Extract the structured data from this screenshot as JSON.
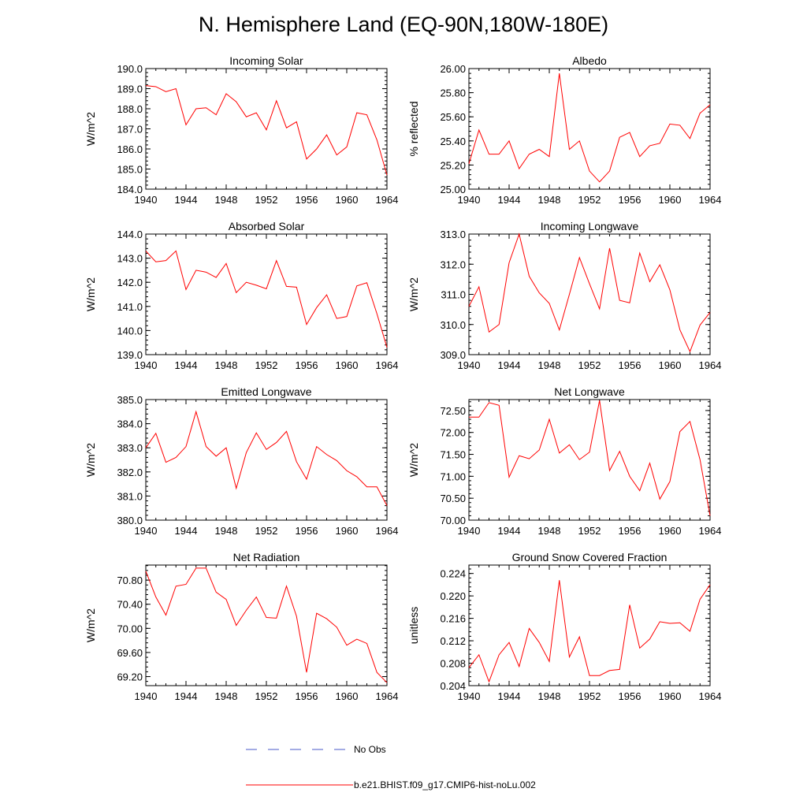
{
  "figure": {
    "title": "N. Hemisphere Land (EQ-90N,180W-180E)"
  },
  "legend": {
    "items": [
      {
        "label": "No Obs",
        "color": "#4a58c8",
        "style": "dashed"
      },
      {
        "label": "b.e21.BHIST.f09_g17.CMIP6-hist-noLu.002",
        "color": "#ff0000",
        "style": "solid"
      }
    ]
  },
  "chart_data": [
    {
      "type": "line",
      "title": "Incoming Solar",
      "xlabel": "",
      "ylabel": "W/m^2",
      "xlim": [
        1940,
        1964
      ],
      "ylim": [
        184.0,
        190.0
      ],
      "xticks": [
        "1940",
        "1944",
        "1948",
        "1952",
        "1956",
        "1960",
        "1964"
      ],
      "yticks": [
        "184.0",
        "185.0",
        "186.0",
        "187.0",
        "188.0",
        "189.0",
        "190.0"
      ],
      "x": [
        1940,
        1941,
        1942,
        1943,
        1944,
        1945,
        1946,
        1947,
        1948,
        1949,
        1950,
        1951,
        1952,
        1953,
        1954,
        1955,
        1956,
        1957,
        1958,
        1959,
        1960,
        1961,
        1962,
        1963,
        1964
      ],
      "series": [
        {
          "name": "b.e21.BHIST.f09_g17.CMIP6-hist-noLu.002",
          "color": "#ff0000",
          "values": [
            189.15,
            189.1,
            188.85,
            189.0,
            187.2,
            188.0,
            188.05,
            187.7,
            188.75,
            188.35,
            187.6,
            187.8,
            186.95,
            188.4,
            187.05,
            187.35,
            185.5,
            186.0,
            186.7,
            185.7,
            186.1,
            187.8,
            187.7,
            186.45,
            184.7
          ]
        }
      ]
    },
    {
      "type": "line",
      "title": "Albedo",
      "xlabel": "",
      "ylabel": "% reflected",
      "xlim": [
        1940,
        1964
      ],
      "ylim": [
        25.0,
        26.0
      ],
      "xticks": [
        "1940",
        "1944",
        "1948",
        "1952",
        "1956",
        "1960",
        "1964"
      ],
      "yticks": [
        "25.00",
        "25.20",
        "25.40",
        "25.60",
        "25.80",
        "26.00"
      ],
      "x": [
        1940,
        1941,
        1942,
        1943,
        1944,
        1945,
        1946,
        1947,
        1948,
        1949,
        1950,
        1951,
        1952,
        1953,
        1954,
        1955,
        1956,
        1957,
        1958,
        1959,
        1960,
        1961,
        1962,
        1963,
        1964
      ],
      "series": [
        {
          "name": "b.e21.BHIST.f09_g17.CMIP6-hist-noLu.002",
          "color": "#ff0000",
          "values": [
            25.21,
            25.49,
            25.29,
            25.29,
            25.4,
            25.17,
            25.29,
            25.33,
            25.27,
            25.96,
            25.33,
            25.4,
            25.15,
            25.06,
            25.15,
            25.43,
            25.47,
            25.27,
            25.36,
            25.38,
            25.54,
            25.53,
            25.42,
            25.63,
            25.7
          ]
        }
      ]
    },
    {
      "type": "line",
      "title": "Absorbed Solar",
      "xlabel": "",
      "ylabel": "W/m^2",
      "xlim": [
        1940,
        1964
      ],
      "ylim": [
        139.0,
        144.0
      ],
      "xticks": [
        "1940",
        "1944",
        "1948",
        "1952",
        "1956",
        "1960",
        "1964"
      ],
      "yticks": [
        "139.0",
        "140.0",
        "141.0",
        "142.0",
        "143.0",
        "144.0"
      ],
      "x": [
        1940,
        1941,
        1942,
        1943,
        1944,
        1945,
        1946,
        1947,
        1948,
        1949,
        1950,
        1951,
        1952,
        1953,
        1954,
        1955,
        1956,
        1957,
        1958,
        1959,
        1960,
        1961,
        1962,
        1963,
        1964
      ],
      "series": [
        {
          "name": "b.e21.BHIST.f09_g17.CMIP6-hist-noLu.002",
          "color": "#ff0000",
          "values": [
            143.3,
            142.85,
            142.9,
            143.3,
            141.7,
            142.5,
            142.42,
            142.2,
            142.78,
            141.57,
            142.0,
            141.88,
            141.73,
            142.9,
            141.83,
            141.8,
            140.25,
            140.95,
            141.48,
            140.5,
            140.58,
            141.85,
            141.98,
            140.7,
            139.3
          ]
        }
      ]
    },
    {
      "type": "line",
      "title": "Incoming Longwave",
      "xlabel": "",
      "ylabel": "W/m^2",
      "xlim": [
        1940,
        1964
      ],
      "ylim": [
        309.0,
        313.0
      ],
      "xticks": [
        "1940",
        "1944",
        "1948",
        "1952",
        "1956",
        "1960",
        "1964"
      ],
      "yticks": [
        "309.0",
        "310.0",
        "311.0",
        "312.0",
        "313.0"
      ],
      "x": [
        1940,
        1941,
        1942,
        1943,
        1944,
        1945,
        1946,
        1947,
        1948,
        1949,
        1950,
        1951,
        1952,
        1953,
        1954,
        1955,
        1956,
        1957,
        1958,
        1959,
        1960,
        1961,
        1962,
        1963,
        1964
      ],
      "series": [
        {
          "name": "b.e21.BHIST.f09_g17.CMIP6-hist-noLu.002",
          "color": "#ff0000",
          "values": [
            310.6,
            311.25,
            309.75,
            310.0,
            312.05,
            313.0,
            311.6,
            311.05,
            310.7,
            309.82,
            311.0,
            312.22,
            311.35,
            310.52,
            312.53,
            310.8,
            310.72,
            312.37,
            311.42,
            311.98,
            311.15,
            309.82,
            309.1,
            309.98,
            310.4
          ]
        }
      ]
    },
    {
      "type": "line",
      "title": "Emitted Longwave",
      "xlabel": "",
      "ylabel": "W/m^2",
      "xlim": [
        1940,
        1964
      ],
      "ylim": [
        380.0,
        385.0
      ],
      "xticks": [
        "1940",
        "1944",
        "1948",
        "1952",
        "1956",
        "1960",
        "1964"
      ],
      "yticks": [
        "380.0",
        "381.0",
        "382.0",
        "383.0",
        "384.0",
        "385.0"
      ],
      "x": [
        1940,
        1941,
        1942,
        1943,
        1944,
        1945,
        1946,
        1947,
        1948,
        1949,
        1950,
        1951,
        1952,
        1953,
        1954,
        1955,
        1956,
        1957,
        1958,
        1959,
        1960,
        1961,
        1962,
        1963,
        1964
      ],
      "series": [
        {
          "name": "b.e21.BHIST.f09_g17.CMIP6-hist-noLu.002",
          "color": "#ff0000",
          "values": [
            383.0,
            383.6,
            382.4,
            382.6,
            383.05,
            384.5,
            383.05,
            382.65,
            383.0,
            381.32,
            382.8,
            383.62,
            382.93,
            383.22,
            383.68,
            382.42,
            381.7,
            383.05,
            382.72,
            382.47,
            382.05,
            381.8,
            381.38,
            381.38,
            380.6
          ]
        }
      ]
    },
    {
      "type": "line",
      "title": "Net Longwave",
      "xlabel": "",
      "ylabel": "W/m^2",
      "xlim": [
        1940,
        1964
      ],
      "ylim": [
        70.0,
        72.75
      ],
      "xticks": [
        "1940",
        "1944",
        "1948",
        "1952",
        "1956",
        "1960",
        "1964"
      ],
      "yticks": [
        "70.00",
        "70.50",
        "71.00",
        "71.50",
        "72.00",
        "72.50"
      ],
      "x": [
        1940,
        1941,
        1942,
        1943,
        1944,
        1945,
        1946,
        1947,
        1948,
        1949,
        1950,
        1951,
        1952,
        1953,
        1954,
        1955,
        1956,
        1957,
        1958,
        1959,
        1960,
        1961,
        1962,
        1963,
        1964
      ],
      "series": [
        {
          "name": "b.e21.BHIST.f09_g17.CMIP6-hist-noLu.002",
          "color": "#ff0000",
          "values": [
            72.35,
            72.35,
            72.68,
            72.62,
            70.98,
            71.47,
            71.4,
            71.6,
            72.3,
            71.53,
            71.72,
            71.38,
            71.55,
            72.73,
            71.13,
            71.57,
            71.0,
            70.67,
            71.3,
            70.48,
            70.88,
            72.02,
            72.25,
            71.38,
            70.1
          ]
        }
      ]
    },
    {
      "type": "line",
      "title": "Net Radiation",
      "xlabel": "",
      "ylabel": "W/m^2",
      "xlim": [
        1940,
        1964
      ],
      "ylim": [
        69.05,
        71.05
      ],
      "xticks": [
        "1940",
        "1944",
        "1948",
        "1952",
        "1956",
        "1960",
        "1964"
      ],
      "yticks": [
        "69.20",
        "69.60",
        "70.00",
        "70.40",
        "70.80"
      ],
      "x": [
        1940,
        1941,
        1942,
        1943,
        1944,
        1945,
        1946,
        1947,
        1948,
        1949,
        1950,
        1951,
        1952,
        1953,
        1954,
        1955,
        1956,
        1957,
        1958,
        1959,
        1960,
        1961,
        1962,
        1963,
        1964
      ],
      "series": [
        {
          "name": "b.e21.BHIST.f09_g17.CMIP6-hist-noLu.002",
          "color": "#ff0000",
          "values": [
            70.95,
            70.52,
            70.22,
            70.7,
            70.73,
            71.0,
            71.0,
            70.6,
            70.48,
            70.05,
            70.3,
            70.52,
            70.18,
            70.17,
            70.7,
            70.2,
            69.27,
            70.25,
            70.16,
            70.02,
            69.72,
            69.82,
            69.75,
            69.27,
            69.1
          ]
        }
      ]
    },
    {
      "type": "line",
      "title": "Ground Snow Covered Fraction",
      "xlabel": "",
      "ylabel": "unitless",
      "xlim": [
        1940,
        1964
      ],
      "ylim": [
        0.204,
        0.2255
      ],
      "xticks": [
        "1940",
        "1944",
        "1948",
        "1952",
        "1956",
        "1960",
        "1964"
      ],
      "yticks": [
        "0.204",
        "0.208",
        "0.212",
        "0.216",
        "0.220",
        "0.224"
      ],
      "x": [
        1940,
        1941,
        1942,
        1943,
        1944,
        1945,
        1946,
        1947,
        1948,
        1949,
        1950,
        1951,
        1952,
        1953,
        1954,
        1955,
        1956,
        1957,
        1958,
        1959,
        1960,
        1961,
        1962,
        1963,
        1964
      ],
      "series": [
        {
          "name": "b.e21.BHIST.f09_g17.CMIP6-hist-noLu.002",
          "color": "#ff0000",
          "values": [
            0.2072,
            0.2095,
            0.2047,
            0.2095,
            0.2117,
            0.2074,
            0.2142,
            0.2117,
            0.2083,
            0.2228,
            0.2091,
            0.2127,
            0.2058,
            0.2058,
            0.2067,
            0.2069,
            0.2184,
            0.2107,
            0.2123,
            0.2154,
            0.2151,
            0.2152,
            0.2137,
            0.2194,
            0.222
          ]
        }
      ]
    }
  ]
}
